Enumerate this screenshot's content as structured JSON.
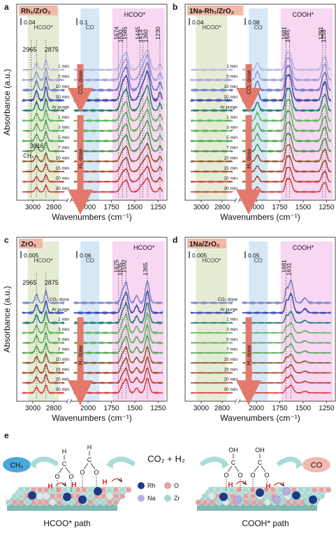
{
  "figure_labels": {
    "e": "e"
  },
  "chart_data": [
    {
      "type": "line",
      "panel_label": "a",
      "title": "Rh₁/ZrO₂",
      "title_bg": "#f2b8a8",
      "xlabel": "Wavenumbers (cm⁻¹)",
      "ylabel": "Absorbance (a.u.)",
      "x_ticks": [
        3000,
        2800,
        2000,
        1750,
        1500,
        1250
      ],
      "scale_bars": [
        "0.04",
        "0.1"
      ],
      "regions": [
        {
          "from": 3050,
          "to": 2750,
          "color": "#dfe9cc",
          "label": "HCOO*"
        },
        {
          "from": 2080,
          "to": 1880,
          "color": "#cfe3f5",
          "label": "CO"
        },
        {
          "from": 1740,
          "to": 1180,
          "color": "#f6d0ef",
          "label": ""
        }
      ],
      "annotations": [
        {
          "text": "HCOO*",
          "x": 1500
        },
        {
          "text": "2965",
          "x": 2965
        },
        {
          "text": "2875",
          "x": 2875
        },
        {
          "text": "1674",
          "x": 1674
        },
        {
          "text": "1630",
          "x": 1630
        },
        {
          "text": "1585",
          "x": 1585
        },
        {
          "text": "1360",
          "x": 1360
        },
        {
          "text": "1230",
          "x": 1230
        },
        {
          "text": "1414",
          "x": 1414
        },
        {
          "text": "1445",
          "x": 1445
        },
        {
          "text": "3016",
          "x": 3016
        },
        {
          "text": "CH₄",
          "x": 3016
        }
      ],
      "doses": [
        {
          "label": "CO₂ dose",
          "from_row": 0,
          "to_row": 3
        },
        {
          "label": "H₂ dose",
          "from_row": 5,
          "to_row": 13
        }
      ],
      "peak_hints": [
        {
          "x": 2965,
          "h": 0.35,
          "w": 20
        },
        {
          "x": 2875,
          "h": 0.5,
          "w": 18
        },
        {
          "x": 1630,
          "h": 0.6,
          "w": 35
        },
        {
          "x": 1585,
          "h": 0.75,
          "w": 30
        },
        {
          "x": 1414,
          "h": 0.55,
          "w": 45
        },
        {
          "x": 1360,
          "h": 0.9,
          "w": 35
        },
        {
          "x": 1230,
          "h": 0.3,
          "w": 20
        }
      ],
      "series": [
        {
          "label": "1 min",
          "color": "#b3b6e3",
          "scale": 0.8
        },
        {
          "label": "5 min",
          "color": "#9aa0dc",
          "scale": 1.0
        },
        {
          "label": "10 min",
          "color": "#6d78c9",
          "scale": 1.1
        },
        {
          "label": "20 min",
          "color": "#3b4aa8",
          "scale": 1.15
        },
        {
          "label": "Ar purge",
          "color": "#1d7f6f",
          "scale": 1.0
        },
        {
          "label": "1 min",
          "color": "#5fb85a",
          "scale": 0.9
        },
        {
          "label": "3 min",
          "color": "#56b054",
          "scale": 0.85
        },
        {
          "label": "5 min",
          "color": "#4ea64d",
          "scale": 0.8
        },
        {
          "label": "7 min",
          "color": "#3f9444",
          "scale": 0.75
        },
        {
          "label": "10 min",
          "color": "#8a5a2c",
          "scale": 0.7
        },
        {
          "label": "15 min",
          "color": "#a6472a",
          "scale": 0.65
        },
        {
          "label": "20 min",
          "color": "#bf3a2f",
          "scale": 0.6
        },
        {
          "label": "30 min",
          "color": "#d93a3a",
          "scale": 0.55
        }
      ]
    },
    {
      "type": "line",
      "panel_label": "b",
      "title": "1Na-Rh₁/ZrO₂",
      "title_bg": "#f2b8a8",
      "xlabel": "Wavenumbers (cm⁻¹)",
      "ylabel": "",
      "x_ticks": [
        3000,
        2800,
        2000,
        1750,
        1500,
        1250
      ],
      "scale_bars": [
        "0.04",
        "0.08"
      ],
      "regions": [
        {
          "from": 3050,
          "to": 2750,
          "color": "#dfe9cc",
          "label": "HCOO*"
        },
        {
          "from": 2080,
          "to": 1880,
          "color": "#cfe3f5",
          "label": "CO"
        },
        {
          "from": 1740,
          "to": 1180,
          "color": "#f6d0ef",
          "label": ""
        }
      ],
      "annotations": [
        {
          "text": "COOH*",
          "x": 1500
        },
        {
          "text": "1681",
          "x": 1681
        },
        {
          "text": "1645",
          "x": 1645
        },
        {
          "text": "1291",
          "x": 1291
        },
        {
          "text": "1259",
          "x": 1259
        }
      ],
      "doses": [
        {
          "label": "CO₂ dose",
          "from_row": 0,
          "to_row": 3
        },
        {
          "label": "H₂ dose",
          "from_row": 5,
          "to_row": 13
        }
      ],
      "peak_hints": [
        {
          "x": 1990,
          "h": 0.35,
          "w": 25
        },
        {
          "x": 1681,
          "h": 0.5,
          "w": 20
        },
        {
          "x": 1645,
          "h": 0.9,
          "w": 35
        },
        {
          "x": 1291,
          "h": 0.45,
          "w": 22
        },
        {
          "x": 1259,
          "h": 0.6,
          "w": 22
        }
      ],
      "series": [
        {
          "label": "1 min",
          "color": "#b3b6e3",
          "scale": 0.8
        },
        {
          "label": "5 min",
          "color": "#9aa0dc",
          "scale": 1.0
        },
        {
          "label": "10 min",
          "color": "#6d78c9",
          "scale": 1.1
        },
        {
          "label": "20 min",
          "color": "#3b4aa8",
          "scale": 1.15
        },
        {
          "label": "Ar purge",
          "color": "#1d7f6f",
          "scale": 1.0
        },
        {
          "label": "1 min",
          "color": "#5fb85a",
          "scale": 0.95
        },
        {
          "label": "3 min",
          "color": "#56b054",
          "scale": 0.9
        },
        {
          "label": "5 min",
          "color": "#4ea64d",
          "scale": 0.85
        },
        {
          "label": "7 min",
          "color": "#3f9444",
          "scale": 0.8
        },
        {
          "label": "10 min",
          "color": "#8a5a2c",
          "scale": 0.75
        },
        {
          "label": "15 min",
          "color": "#a6472a",
          "scale": 0.7
        },
        {
          "label": "20 min",
          "color": "#bf3a2f",
          "scale": 0.65
        },
        {
          "label": "30 min",
          "color": "#d93a3a",
          "scale": 0.6
        }
      ]
    },
    {
      "type": "line",
      "panel_label": "c",
      "title": "ZrO₂",
      "title_bg": "#f2b8a8",
      "xlabel": "Wavenumbers (cm⁻¹)",
      "ylabel": "Absorbance (a.u.)",
      "x_ticks": [
        3000,
        2800,
        2000,
        1750,
        1500,
        1250
      ],
      "scale_bars": [
        "0.005",
        "0.06"
      ],
      "regions": [
        {
          "from": 3050,
          "to": 2750,
          "color": "#dfe9cc",
          "label": "HCOO*"
        },
        {
          "from": 2080,
          "to": 1880,
          "color": "#cfe3f5",
          "label": "CO"
        },
        {
          "from": 1740,
          "to": 1180,
          "color": "#f6d0ef",
          "label": ""
        }
      ],
      "annotations": [
        {
          "text": "HCOO*",
          "x": 1400
        },
        {
          "text": "1675",
          "x": 1675
        },
        {
          "text": "1635",
          "x": 1635
        },
        {
          "text": "1592",
          "x": 1592
        },
        {
          "text": "1365",
          "x": 1365
        },
        {
          "text": "2965",
          "x": 2965
        },
        {
          "text": "2875",
          "x": 2875
        }
      ],
      "doses": [
        {
          "label": "H₂ dose",
          "from_row": 2,
          "to_row": 9
        }
      ],
      "peak_hints": [
        {
          "x": 2965,
          "h": 0.35,
          "w": 20
        },
        {
          "x": 2875,
          "h": 0.5,
          "w": 18
        },
        {
          "x": 1635,
          "h": 0.4,
          "w": 25
        },
        {
          "x": 1592,
          "h": 0.85,
          "w": 30
        },
        {
          "x": 1480,
          "h": 0.3,
          "w": 25
        },
        {
          "x": 1365,
          "h": 0.9,
          "w": 30
        }
      ],
      "series": [
        {
          "label": "CO₂ dose",
          "color": "#7d83cc",
          "scale": 1.0
        },
        {
          "label": "Ar purge",
          "color": "#3b4aa8",
          "scale": 1.0
        },
        {
          "label": "1 min",
          "color": "#1d7f6f",
          "scale": 0.95
        },
        {
          "label": "3 min",
          "color": "#5fb85a",
          "scale": 0.9
        },
        {
          "label": "5 min",
          "color": "#56b054",
          "scale": 0.85
        },
        {
          "label": "7 min",
          "color": "#4ea64d",
          "scale": 0.8
        },
        {
          "label": "10 min",
          "color": "#8a5a2c",
          "scale": 0.75
        },
        {
          "label": "15 min",
          "color": "#a6472a",
          "scale": 0.72
        },
        {
          "label": "20 min",
          "color": "#bf3a2f",
          "scale": 0.7
        },
        {
          "label": "30 min",
          "color": "#d93a3a",
          "scale": 0.68
        }
      ]
    },
    {
      "type": "line",
      "panel_label": "d",
      "title": "1Na/ZrO₂",
      "title_bg": "#f2b8a8",
      "xlabel": "Wavenumbers (cm⁻¹)",
      "ylabel": "",
      "x_ticks": [
        3000,
        2800,
        2000,
        1750,
        1500,
        1250
      ],
      "scale_bars": [
        "0.005",
        "0.05"
      ],
      "regions": [
        {
          "from": 3050,
          "to": 2750,
          "color": "#dfe9cc",
          "label": "HCOO*"
        },
        {
          "from": 2080,
          "to": 1880,
          "color": "#cfe3f5",
          "label": "CO"
        },
        {
          "from": 1740,
          "to": 1180,
          "color": "#f6d0ef",
          "label": ""
        }
      ],
      "annotations": [
        {
          "text": "COOH*",
          "x": 1500
        },
        {
          "text": "1681",
          "x": 1681
        },
        {
          "text": "1631",
          "x": 1631
        }
      ],
      "doses": [
        {
          "label": "H₂ dose",
          "from_row": 2,
          "to_row": 9
        }
      ],
      "peak_hints": [
        {
          "x": 1681,
          "h": 0.5,
          "w": 20
        },
        {
          "x": 1631,
          "h": 0.95,
          "w": 35
        },
        {
          "x": 1480,
          "h": 0.2,
          "w": 30
        }
      ],
      "series": [
        {
          "label": "CO₂ dose",
          "color": "#7d83cc",
          "scale": 1.0
        },
        {
          "label": "Ar purge",
          "color": "#3b4aa8",
          "scale": 0.85
        },
        {
          "label": "1 min",
          "color": "#1d7f6f",
          "scale": 0.5
        },
        {
          "label": "3 min",
          "color": "#5fb85a",
          "scale": 0.45
        },
        {
          "label": "5 min",
          "color": "#56b054",
          "scale": 0.42
        },
        {
          "label": "7 min",
          "color": "#4ea64d",
          "scale": 0.4
        },
        {
          "label": "10 min",
          "color": "#8a5a2c",
          "scale": 0.38
        },
        {
          "label": "15 min",
          "color": "#a6472a",
          "scale": 0.36
        },
        {
          "label": "20 min",
          "color": "#bf3a2f",
          "scale": 0.35
        },
        {
          "label": "30 min",
          "color": "#d93a3a",
          "scale": 0.34
        }
      ]
    }
  ],
  "scheme": {
    "left_product": "CH₄",
    "right_product": "CO",
    "reactants": "CO₂ + H₂",
    "left_path": "HCOO* path",
    "right_path": "COOH* path",
    "legend": [
      {
        "label": "Rh",
        "color": "#1e3a8a"
      },
      {
        "label": "O",
        "color": "#e8a0a0"
      },
      {
        "label": "Na",
        "color": "#b8aee0"
      },
      {
        "label": "Zr",
        "color": "#a9d8d2"
      }
    ],
    "molecule_labels": {
      "h": "H",
      "c": "C",
      "o": "O",
      "oh": "OH",
      "h_red": "H"
    },
    "colors": {
      "ch4_bg": "#4aa7d9",
      "co_bg": "#f3b8ae",
      "arrow": "#a9dcd7",
      "rh": "#1e3a8a",
      "surface_o": "#e8a0a0",
      "surface_zr": "#a9d8d2",
      "red": "#d42d2d"
    }
  }
}
